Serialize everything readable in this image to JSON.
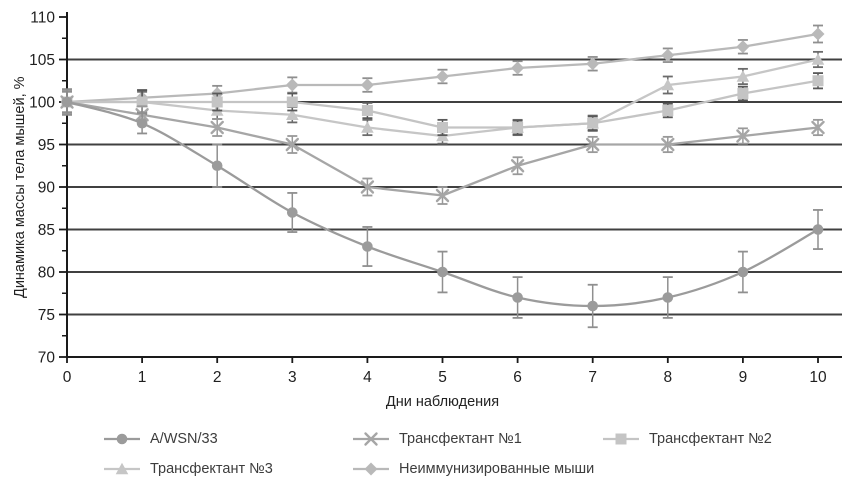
{
  "chart_data": {
    "type": "line",
    "xlabel": "Дни наблюдения",
    "ylabel": "Динамика массы тела мышей, %",
    "x": [
      0,
      1,
      2,
      3,
      4,
      5,
      6,
      7,
      8,
      9,
      10
    ],
    "xlim": [
      0,
      10
    ],
    "ylim": [
      70,
      110
    ],
    "yticks": [
      70,
      75,
      80,
      85,
      90,
      95,
      100,
      105,
      110
    ],
    "xticks": [
      0,
      1,
      2,
      3,
      4,
      5,
      6,
      7,
      8,
      9,
      10
    ],
    "grid": "horizontal",
    "legend_position": "bottom",
    "series": [
      {
        "name": "A/WSN/33",
        "marker": "circle",
        "smooth": true,
        "color": "#9b9b9b",
        "error_color": "#8f8f8f",
        "values": [
          100,
          97.5,
          92.5,
          87,
          83,
          80,
          77,
          76,
          77,
          80,
          85
        ],
        "errors": [
          1.5,
          1.2,
          2.5,
          2.3,
          2.3,
          2.4,
          2.4,
          2.5,
          2.4,
          2.4,
          2.3
        ]
      },
      {
        "name": "Трансфектант №1",
        "marker": "x",
        "smooth": false,
        "color": "#a6a6a6",
        "error_color": "#999999",
        "values": [
          100,
          98.5,
          97,
          95,
          90,
          89,
          92.5,
          95,
          95,
          96,
          97
        ],
        "errors": [
          1.4,
          1.0,
          1.0,
          1.0,
          1.0,
          1.0,
          1.0,
          0.9,
          0.9,
          0.9,
          0.9
        ]
      },
      {
        "name": "Трансфектант №2",
        "marker": "square",
        "smooth": false,
        "color": "#c4c4c4",
        "error_color": "#595959",
        "values": [
          100,
          100,
          100,
          100,
          99,
          97,
          97,
          97.5,
          99,
          101,
          102.5
        ],
        "errors": [
          1.5,
          1.4,
          1.0,
          1.0,
          0.9,
          0.9,
          0.8,
          0.8,
          0.8,
          0.8,
          0.9
        ]
      },
      {
        "name": "Трансфектант №3",
        "marker": "triangle",
        "smooth": false,
        "color": "#c6c6c6",
        "error_color": "#6b6b6b",
        "values": [
          100,
          100,
          99,
          98.5,
          97,
          96,
          97,
          97.5,
          102,
          103,
          105
        ],
        "errors": [
          1.4,
          1.2,
          1.0,
          0.9,
          0.9,
          0.9,
          0.9,
          0.9,
          1.0,
          0.9,
          0.9
        ]
      },
      {
        "name": "Неиммунизированные мыши",
        "marker": "diamond",
        "smooth": false,
        "color": "#b9b9b9",
        "error_color": "#8f8f8f",
        "values": [
          100,
          100.5,
          101,
          102,
          102,
          103,
          104,
          104.5,
          105.5,
          106.5,
          108
        ],
        "errors": [
          1.2,
          0.9,
          0.9,
          0.9,
          0.8,
          0.8,
          0.8,
          0.8,
          0.8,
          0.8,
          1.0
        ]
      }
    ]
  },
  "legend": {
    "items": [
      {
        "label": "A/WSN/33",
        "series": 0
      },
      {
        "label": "Трансфектант №1",
        "series": 1
      },
      {
        "label": "Трансфектант №2",
        "series": 2
      },
      {
        "label": "Трансфектант №3",
        "series": 3
      },
      {
        "label": "Неиммунизированные мыши",
        "series": 4
      }
    ],
    "layout_rows": [
      [
        0,
        1,
        2
      ],
      [
        3,
        4
      ]
    ]
  },
  "colors": {
    "background": "#ffffff",
    "gridline": "#404040",
    "axis": "#1a1a1a",
    "tick_label": "#1f1f1f",
    "legend_text": "#3d3d3d"
  }
}
